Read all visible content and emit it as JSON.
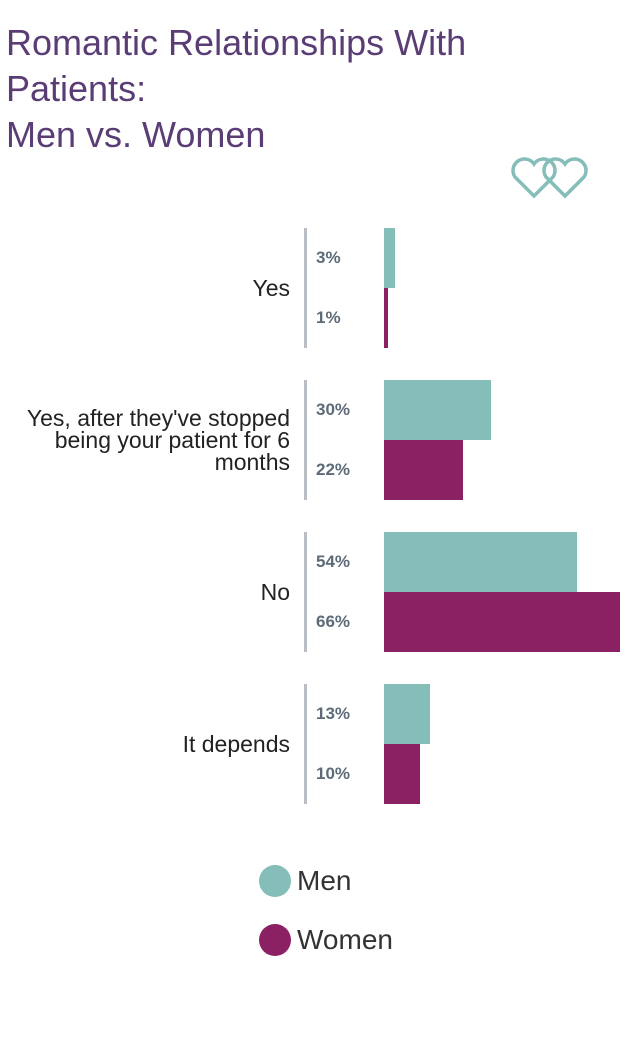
{
  "chart_data": {
    "type": "bar",
    "orientation": "horizontal",
    "title": [
      "Romantic Relationships With Patients:",
      "Men vs. Women"
    ],
    "categories": [
      "Yes",
      "Yes, after they've stopped being your patient for 6 months",
      "No",
      "It depends"
    ],
    "series": [
      {
        "name": "Men",
        "color": "#85bdb8",
        "values": [
          3,
          30,
          54,
          13
        ],
        "value_labels": [
          "3%",
          "30%",
          "54%",
          "13%"
        ]
      },
      {
        "name": "Women",
        "color": "#8b2163",
        "values": [
          1,
          22,
          66,
          10
        ],
        "value_labels": [
          "1%",
          "22%",
          "66%",
          "10%"
        ]
      }
    ]
  }
}
